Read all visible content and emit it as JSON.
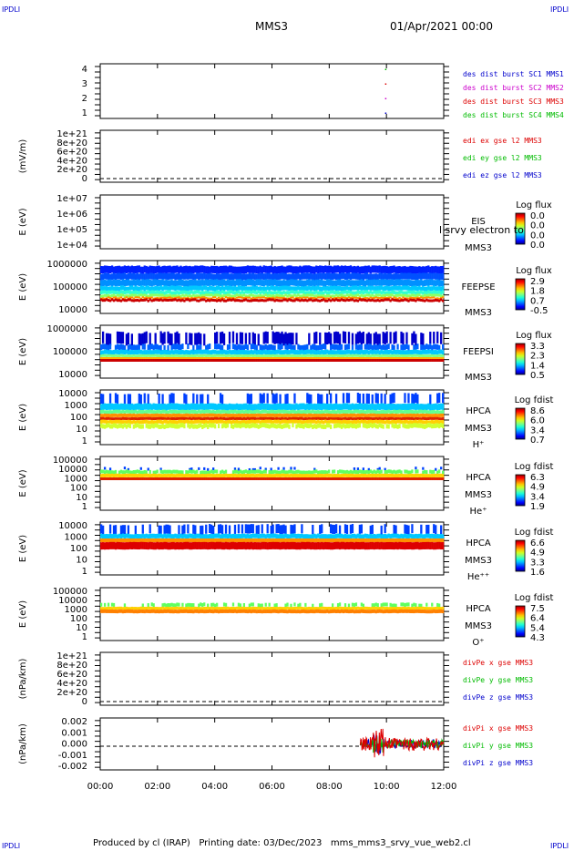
{
  "header": {
    "corner_tl": "IPDLI",
    "corner_tr": "IPDLI",
    "corner_bl": "IPDLI",
    "corner_br": "IPDLI",
    "title": "MMS3",
    "date": "01/Apr/2021 00:00"
  },
  "footer": "Produced by cl (IRAP)   Printing date: 03/Dec/2023   mms_mms3_srvy_vue_web2.cl",
  "colors": {
    "blue": "#0000cc",
    "magenta": "#cc00cc",
    "red": "#dd0000",
    "green": "#00bb00"
  },
  "chart_data": [
    {
      "type": "scatter",
      "panel": 1,
      "yticks": [
        "1",
        "2",
        "3",
        "4"
      ],
      "ylim": [
        0.5,
        4.5
      ],
      "legend": [
        {
          "name": "des dist burst SC1 MMS1",
          "color": "#0000cc"
        },
        {
          "name": "des dist burst SC2 MMS2",
          "color": "#cc00cc"
        },
        {
          "name": "des dist burst SC3 MMS3",
          "color": "#dd0000"
        },
        {
          "name": "des dist burst SC4 MMS4",
          "color": "#00bb00"
        }
      ],
      "points": [
        {
          "x": "09:58",
          "y": 4,
          "color": "#00bb00"
        },
        {
          "x": "09:58",
          "y": 3,
          "color": "#dd0000"
        },
        {
          "x": "09:58",
          "y": 2,
          "color": "#cc00cc"
        },
        {
          "x": "09:58",
          "y": 1,
          "color": "#0000cc"
        }
      ]
    },
    {
      "type": "line",
      "panel": 2,
      "ylabel": "(mV/m)",
      "yticks": [
        "1e+21",
        "8e+20",
        "6e+20",
        "4e+20",
        "2e+20",
        "0"
      ],
      "legend": [
        {
          "name": "edi ex gse l2 MMS3",
          "color": "#dd0000"
        },
        {
          "name": "edi ey gse l2 MMS3",
          "color": "#00bb00"
        },
        {
          "name": "edi ez gse l2 MMS3",
          "color": "#0000cc"
        }
      ]
    },
    {
      "type": "heatmap",
      "panel": 3,
      "ylabel": "E (eV)",
      "yticks": [
        "1e+07",
        "1e+06",
        "1e+05",
        "1e+04"
      ],
      "labels": [
        "EIS",
        "MMS3"
      ],
      "overlay_text": "l srvy electron to",
      "colorbar_title": "Log flux",
      "colorbar_ticks": [
        "0.0",
        "0.0",
        "0.0",
        "0.0"
      ]
    },
    {
      "type": "heatmap",
      "panel": 4,
      "ylabel": "E (eV)",
      "yticks": [
        "1000000",
        "100000",
        "10000"
      ],
      "labels": [
        "FEEPSE",
        "MMS3"
      ],
      "colorbar_title": "Log flux",
      "colorbar_ticks": [
        "2.9",
        "1.8",
        "0.7",
        "-0.5"
      ]
    },
    {
      "type": "heatmap",
      "panel": 5,
      "ylabel": "E (eV)",
      "yticks": [
        "1000000",
        "100000",
        "10000"
      ],
      "labels": [
        "FEEPSI",
        "MMS3"
      ],
      "colorbar_title": "Log flux",
      "colorbar_ticks": [
        "3.3",
        "2.3",
        "1.4",
        "0.5"
      ]
    },
    {
      "type": "heatmap",
      "panel": 6,
      "ylabel": "E (eV)",
      "yticks": [
        "10000",
        "1000",
        "100",
        "10",
        "1"
      ],
      "labels": [
        "HPCA",
        "MMS3",
        "H⁺"
      ],
      "colorbar_title": "Log fdist",
      "colorbar_ticks": [
        "8.6",
        "6.0",
        "3.4",
        "0.7"
      ]
    },
    {
      "type": "heatmap",
      "panel": 7,
      "ylabel": "E (eV)",
      "yticks": [
        "100000",
        "10000",
        "1000",
        "100",
        "10",
        "1"
      ],
      "labels": [
        "HPCA",
        "MMS3",
        "He⁺"
      ],
      "colorbar_title": "Log fdist",
      "colorbar_ticks": [
        "6.3",
        "4.9",
        "3.4",
        "1.9"
      ]
    },
    {
      "type": "heatmap",
      "panel": 8,
      "ylabel": "E (eV)",
      "yticks": [
        "10000",
        "1000",
        "100",
        "10",
        "1"
      ],
      "labels": [
        "HPCA",
        "MMS3",
        "He⁺⁺"
      ],
      "colorbar_title": "Log fdist",
      "colorbar_ticks": [
        "6.6",
        "4.9",
        "3.3",
        "1.6"
      ]
    },
    {
      "type": "heatmap",
      "panel": 9,
      "ylabel": "E (eV)",
      "yticks": [
        "100000",
        "10000",
        "1000",
        "100",
        "10",
        "1"
      ],
      "labels": [
        "HPCA",
        "MMS3",
        "O⁺"
      ],
      "colorbar_title": "Log fdist",
      "colorbar_ticks": [
        "7.5",
        "6.4",
        "5.4",
        "4.3"
      ]
    },
    {
      "type": "line",
      "panel": 10,
      "ylabel": "(nPa/km)",
      "yticks": [
        "1e+21",
        "8e+20",
        "6e+20",
        "4e+20",
        "2e+20",
        "0"
      ],
      "legend": [
        {
          "name": "divPe x gse MMS3",
          "color": "#dd0000"
        },
        {
          "name": "divPe y gse MMS3",
          "color": "#00bb00"
        },
        {
          "name": "divPe z gse MMS3",
          "color": "#0000cc"
        }
      ]
    },
    {
      "type": "line",
      "panel": 11,
      "ylabel": "(nPa/km)",
      "yticks": [
        "0.002",
        "0.001",
        "0.000",
        "-0.001",
        "-0.002"
      ],
      "ylim": [
        -0.0027,
        0.0027
      ],
      "legend": [
        {
          "name": "divPi x gse MMS3",
          "color": "#dd0000"
        },
        {
          "name": "divPi y gse MMS3",
          "color": "#00bb00"
        },
        {
          "name": "divPi z gse MMS3",
          "color": "#0000cc"
        }
      ],
      "data_interval": [
        "09:05",
        "12:00"
      ]
    }
  ],
  "xaxis": {
    "ticks": [
      "00:00",
      "02:00",
      "04:00",
      "06:00",
      "08:00",
      "10:00",
      "12:00"
    ],
    "range": [
      "00:00",
      "12:00"
    ]
  }
}
